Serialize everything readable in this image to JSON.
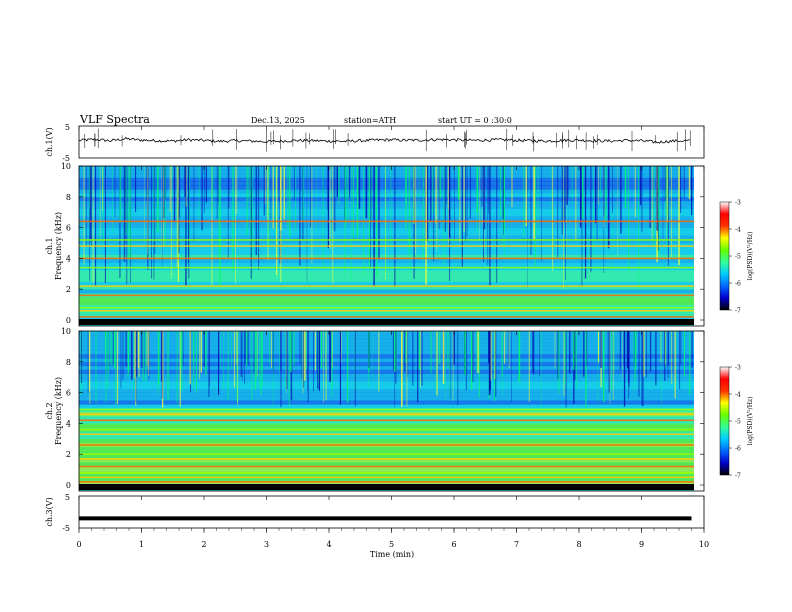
{
  "header": {
    "title": "VLF  Spectra",
    "date": "Dec.13, 2025",
    "station": "station=ATH",
    "start": "start  UT  =    0  :30:0"
  },
  "colors": {
    "background": "#ffffff",
    "axis": "#000000",
    "ch1_trace": "#000000",
    "ch3_trace": "#000000",
    "colormap": [
      "#000000",
      "#0000cc",
      "#0066ff",
      "#00ccff",
      "#33ff99",
      "#66ff00",
      "#ffff00",
      "#ff3300",
      "#ff0000",
      "#ffffff"
    ]
  },
  "chart_data": [
    {
      "type": "line",
      "id": "ch1",
      "ylabel": "ch.1(V)",
      "ylim": [
        -5,
        5
      ],
      "y_ticks": [
        "5",
        "-5"
      ],
      "xlim": [
        0,
        10
      ],
      "series": [
        {
          "x": [
            0.0,
            0.25,
            0.5,
            0.75,
            1.0,
            1.25,
            1.5,
            1.75,
            2.0,
            2.25,
            2.5,
            2.75,
            3.0,
            3.25,
            3.5,
            3.75,
            4.0,
            4.25,
            4.5,
            4.75,
            5.0,
            5.25,
            5.5,
            5.75,
            6.0,
            6.25,
            6.5,
            6.75,
            7.0,
            7.25,
            7.5,
            7.75,
            8.0,
            8.25,
            8.5,
            8.75,
            9.0,
            9.25,
            9.5,
            9.8
          ],
          "y": [
            0.5,
            0.8,
            0.4,
            1.0,
            0.6,
            0.4,
            0.3,
            0.7,
            0.5,
            0.2,
            0.4,
            0.3,
            0.1,
            0.3,
            0.5,
            0.4,
            0.3,
            0.2,
            0.4,
            0.6,
            0.7,
            0.5,
            0.6,
            0.8,
            0.7,
            0.5,
            0.6,
            0.7,
            0.5,
            0.4,
            0.3,
            0.5,
            0.6,
            0.4,
            0.3,
            0.5,
            0.4,
            -0.1,
            0.3,
            0.5
          ]
        }
      ]
    },
    {
      "type": "heatmap",
      "id": "ch1_spectrogram",
      "ylabel": "ch.1\nFrequency  (kHz)",
      "ylim": [
        0,
        10
      ],
      "y_ticks": [
        "0",
        "2",
        "4",
        "6",
        "8",
        "10"
      ],
      "xlim": [
        0,
        10
      ],
      "colorbar": {
        "label": "log(PSD)(V²/Hz)",
        "range": [
          -7,
          -3
        ],
        "ticks": [
          "-3",
          "-4",
          "-5",
          "-6",
          "-7"
        ]
      },
      "frequency_bands_khz": [
        0.2,
        0.6,
        0.8,
        1.6,
        2.2,
        3.4,
        4.0,
        4.8,
        5.2,
        6.4
      ]
    },
    {
      "type": "heatmap",
      "id": "ch2_spectrogram",
      "ylabel": "ch.2\nFrequency  (kHz)",
      "ylim": [
        0,
        10
      ],
      "y_ticks": [
        "0",
        "2",
        "4",
        "6",
        "8",
        "10"
      ],
      "xlim": [
        0,
        10
      ],
      "colorbar": {
        "label": "log(PSD)(V²/Hz)",
        "range": [
          -7,
          -3
        ],
        "ticks": [
          "-3",
          "-4",
          "-5",
          "-6",
          "-7"
        ]
      },
      "frequency_bands_khz": [
        0.2,
        0.5,
        0.8,
        1.2,
        1.7,
        2.0,
        2.6,
        3.3,
        3.6,
        4.2,
        4.6,
        4.9
      ]
    },
    {
      "type": "line",
      "id": "ch3",
      "ylabel": "ch.3(V)",
      "ylim": [
        -5,
        5
      ],
      "y_ticks": [
        "5",
        "-5"
      ],
      "xlim": [
        0,
        10
      ],
      "xlabel": "Time  (min)",
      "x_ticks": [
        "0",
        "1",
        "2",
        "3",
        "4",
        "5",
        "6",
        "7",
        "8",
        "9",
        "10"
      ],
      "series": [
        {
          "x": [
            0.0,
            9.8
          ],
          "y": [
            -2.0,
            -2.0
          ]
        }
      ]
    }
  ]
}
